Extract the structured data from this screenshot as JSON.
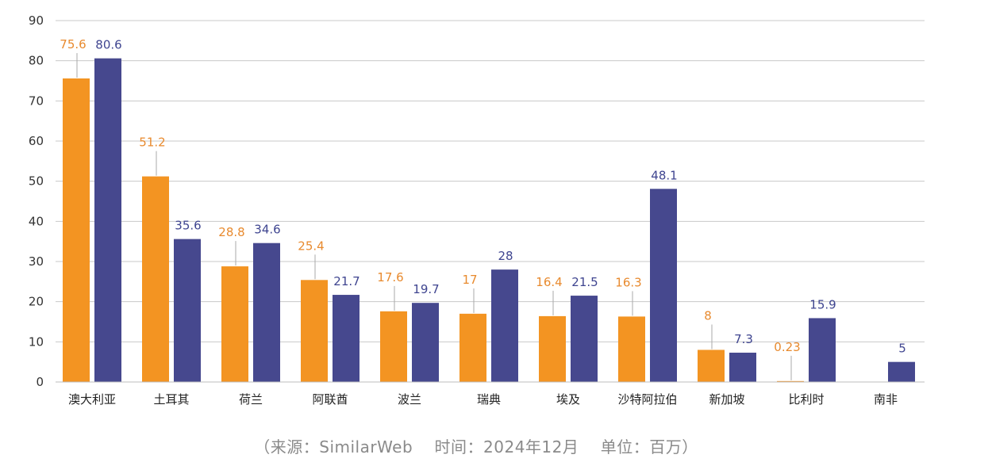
{
  "chart_data": {
    "type": "bar",
    "categories": [
      "澳大利亚",
      "土耳其",
      "荷兰",
      "阿联酋",
      "波兰",
      "瑞典",
      "埃及",
      "沙特阿拉伯",
      "新加坡",
      "比利时",
      "南非"
    ],
    "series": [
      {
        "values": [
          75.6,
          51.2,
          28.8,
          25.4,
          17.6,
          17,
          16.4,
          16.3,
          8,
          0.23,
          null
        ],
        "labels": [
          "75.6",
          "51.2",
          "28.8",
          "25.4",
          "17.6",
          "17",
          "16.4",
          "16.3",
          "8",
          "0.23",
          ""
        ],
        "color": "#F39422",
        "label_color": "#E88A2E"
      },
      {
        "values": [
          80.6,
          35.6,
          34.6,
          21.7,
          19.7,
          28,
          21.5,
          48.1,
          7.3,
          15.9,
          5
        ],
        "labels": [
          "80.6",
          "35.6",
          "34.6",
          "21.7",
          "19.7",
          "28",
          "21.5",
          "48.1",
          "7.3",
          "15.9",
          "5"
        ],
        "color": "#46488E",
        "label_color": "#3F4590"
      }
    ],
    "yticks": [
      0,
      10,
      20,
      30,
      40,
      50,
      60,
      70,
      80,
      90
    ],
    "ylim": [
      0,
      90
    ],
    "grid": true
  },
  "source_note": "（来源：SimilarWeb　 时间：2024年12月　 单位：百万）"
}
